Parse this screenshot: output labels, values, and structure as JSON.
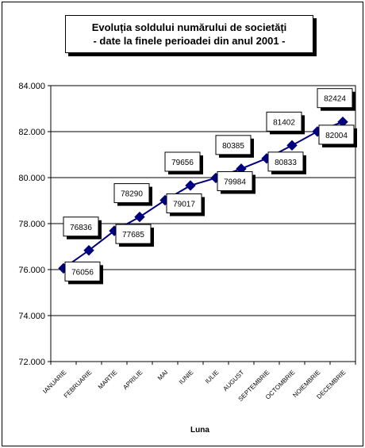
{
  "chart_data": {
    "type": "line",
    "title": [
      "Evoluția soldului numărului de societăți",
      "- date la finele perioadei din anul 2001 -"
    ],
    "xlabel": "Luna",
    "ylabel": "",
    "categories": [
      "IANUARIE",
      "FEBRUARIE",
      "MARTIE",
      "APRILIE",
      "MAI",
      "IUNIE",
      "IULIE",
      "AUGUST",
      "SEPTEMBRIE",
      "OCTOMBRIE",
      "NOIEMBRIE",
      "DECEMBRIE"
    ],
    "series": [
      {
        "values": [
          76056,
          76836,
          77685,
          78290,
          79017,
          79656,
          79984,
          80385,
          80833,
          81402,
          82004,
          82424
        ],
        "color": "#00007f"
      }
    ],
    "data_labels": [
      "76056",
      "76836",
      "77685",
      "78290",
      "79017",
      "79656",
      "79984",
      "80385",
      "80833",
      "81402",
      "82004",
      "82424"
    ],
    "ylim": [
      72000,
      84000
    ],
    "yticks": [
      72000,
      74000,
      76000,
      78000,
      80000,
      82000,
      84000
    ],
    "ytick_labels": [
      "72.000",
      "74.000",
      "76.000",
      "78.000",
      "80.000",
      "82.000",
      "84.000"
    ],
    "grid": true,
    "legend": "none"
  }
}
